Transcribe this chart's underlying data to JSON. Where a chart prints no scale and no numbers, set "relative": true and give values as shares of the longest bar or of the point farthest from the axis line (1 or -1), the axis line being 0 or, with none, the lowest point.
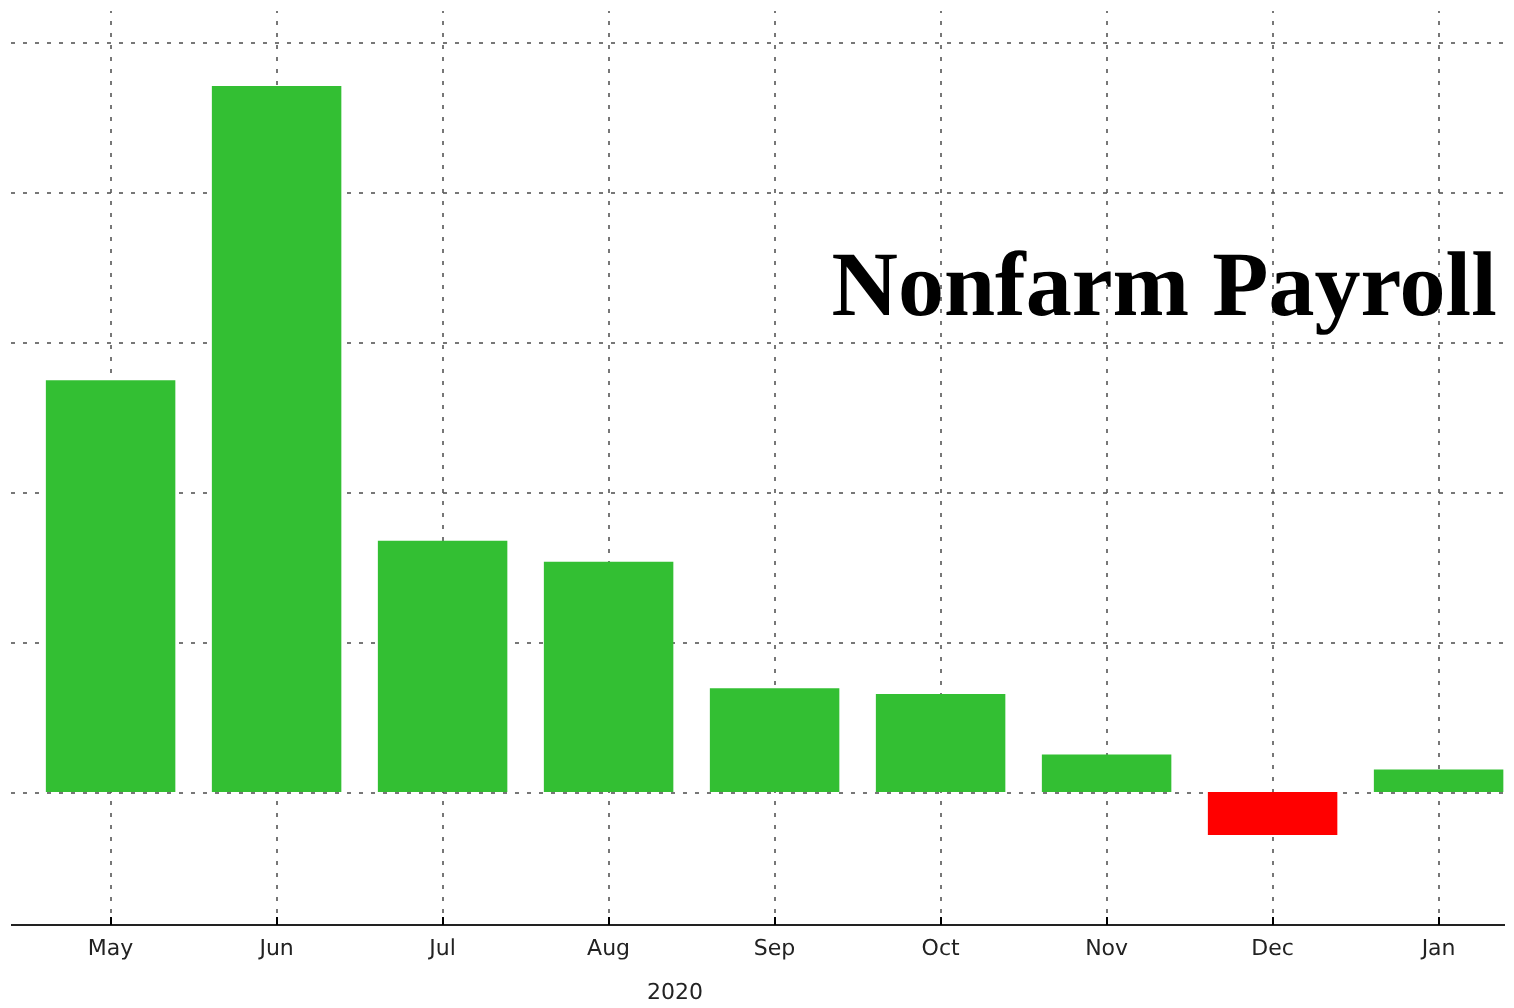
{
  "chart_data": {
    "type": "bar",
    "title": "Nonfarm Payroll",
    "relative": true,
    "grid": true,
    "categories": [
      "May",
      "Jun",
      "Jul",
      "Aug",
      "Sep",
      "Oct",
      "Nov",
      "Dec",
      "Jan"
    ],
    "values": [
      0.583,
      1,
      0.356,
      0.326,
      0.147,
      0.139,
      0.053,
      -0.061,
      0.032
    ],
    "colors": [
      "#33bf33",
      "#33bf33",
      "#33bf33",
      "#33bf33",
      "#33bf33",
      "#33bf33",
      "#33bf33",
      "#ff0000",
      "#33bf33"
    ],
    "annotations": [
      "2020"
    ]
  }
}
